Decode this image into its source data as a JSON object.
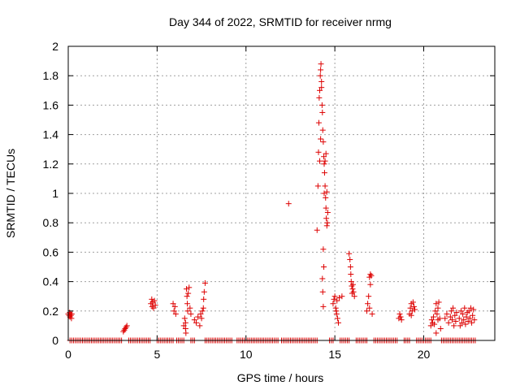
{
  "chart_data": {
    "type": "scatter",
    "title": "Day 344 of 2022, SRMTID for receiver nrmg",
    "xlabel": "GPS time / hours",
    "ylabel": "SRMTID / TECUs",
    "xlim": [
      0,
      24
    ],
    "ylim": [
      0,
      2
    ],
    "xticks": [
      0,
      5,
      10,
      15,
      20
    ],
    "xtick_labels": [
      "0",
      "5",
      "10",
      "15",
      "20"
    ],
    "yticks": [
      0,
      0.2,
      0.4,
      0.6,
      0.8,
      1,
      1.2,
      1.4,
      1.6,
      1.8,
      2
    ],
    "ytick_labels": [
      "0",
      "0.2",
      "0.4",
      "0.6",
      "0.8",
      "1",
      "1.2",
      "1.4",
      "1.6",
      "1.8",
      "2"
    ],
    "grid": true,
    "marker": "+",
    "color": "#dd0000",
    "series": [
      {
        "name": "SRMTID",
        "points": [
          [
            0.0,
            0.18
          ],
          [
            0.05,
            0.17
          ],
          [
            0.08,
            0.19
          ],
          [
            0.1,
            0.16
          ],
          [
            0.12,
            0.18
          ],
          [
            0.15,
            0.17
          ],
          [
            0.18,
            0.15
          ],
          [
            0.2,
            0.18
          ],
          [
            3.1,
            0.06
          ],
          [
            3.15,
            0.07
          ],
          [
            3.2,
            0.08
          ],
          [
            3.25,
            0.09
          ],
          [
            3.3,
            0.1
          ],
          [
            4.65,
            0.25
          ],
          [
            4.7,
            0.28
          ],
          [
            4.75,
            0.26
          ],
          [
            4.8,
            0.22
          ],
          [
            4.85,
            0.27
          ],
          [
            4.9,
            0.24
          ],
          [
            4.72,
            0.23
          ],
          [
            5.9,
            0.25
          ],
          [
            5.95,
            0.2
          ],
          [
            6.0,
            0.23
          ],
          [
            6.05,
            0.18
          ],
          [
            6.5,
            0.1
          ],
          [
            6.55,
            0.15
          ],
          [
            6.6,
            0.12
          ],
          [
            6.65,
            0.35
          ],
          [
            6.68,
            0.3
          ],
          [
            6.7,
            0.25
          ],
          [
            6.72,
            0.2
          ],
          [
            6.75,
            0.32
          ],
          [
            6.8,
            0.36
          ],
          [
            6.85,
            0.22
          ],
          [
            6.9,
            0.18
          ],
          [
            6.6,
            0.08
          ],
          [
            6.62,
            0.05
          ],
          [
            7.1,
            0.14
          ],
          [
            7.2,
            0.12
          ],
          [
            7.3,
            0.16
          ],
          [
            7.4,
            0.1
          ],
          [
            7.45,
            0.18
          ],
          [
            7.5,
            0.15
          ],
          [
            7.55,
            0.2
          ],
          [
            7.6,
            0.22
          ],
          [
            7.62,
            0.28
          ],
          [
            7.65,
            0.33
          ],
          [
            7.7,
            0.39
          ],
          [
            12.4,
            0.93
          ],
          [
            14.0,
            0.75
          ],
          [
            14.05,
            1.05
          ],
          [
            14.08,
            1.28
          ],
          [
            14.1,
            1.48
          ],
          [
            14.12,
            1.65
          ],
          [
            14.15,
            1.7
          ],
          [
            14.18,
            1.8
          ],
          [
            14.2,
            1.84
          ],
          [
            14.22,
            1.88
          ],
          [
            14.25,
            1.76
          ],
          [
            14.28,
            1.6
          ],
          [
            14.3,
            1.55
          ],
          [
            14.32,
            1.43
          ],
          [
            14.35,
            1.35
          ],
          [
            14.38,
            1.25
          ],
          [
            14.4,
            1.2
          ],
          [
            14.42,
            1.14
          ],
          [
            14.45,
            1.05
          ],
          [
            14.48,
            0.97
          ],
          [
            14.5,
            0.9
          ],
          [
            14.52,
            0.83
          ],
          [
            14.55,
            0.78
          ],
          [
            14.58,
            0.8
          ],
          [
            14.6,
            0.87
          ],
          [
            14.35,
            0.62
          ],
          [
            14.38,
            0.5
          ],
          [
            14.3,
            0.42
          ],
          [
            14.32,
            0.33
          ],
          [
            14.35,
            0.23
          ],
          [
            14.5,
            1.27
          ],
          [
            14.45,
            1.22
          ],
          [
            14.4,
            1.0
          ],
          [
            14.25,
            1.72
          ],
          [
            14.2,
            1.37
          ],
          [
            14.15,
            1.22
          ],
          [
            14.55,
            1.01
          ],
          [
            14.9,
            0.25
          ],
          [
            14.95,
            0.28
          ],
          [
            15.0,
            0.3
          ],
          [
            15.05,
            0.22
          ],
          [
            15.1,
            0.18
          ],
          [
            15.15,
            0.15
          ],
          [
            15.2,
            0.12
          ],
          [
            15.12,
            0.27
          ],
          [
            15.08,
            0.2
          ],
          [
            15.25,
            0.29
          ],
          [
            15.4,
            0.3
          ],
          [
            15.8,
            0.59
          ],
          [
            15.85,
            0.55
          ],
          [
            15.88,
            0.5
          ],
          [
            15.9,
            0.45
          ],
          [
            15.92,
            0.4
          ],
          [
            15.95,
            0.37
          ],
          [
            16.0,
            0.35
          ],
          [
            16.05,
            0.33
          ],
          [
            16.1,
            0.3
          ],
          [
            15.97,
            0.32
          ],
          [
            16.02,
            0.38
          ],
          [
            16.8,
            0.2
          ],
          [
            16.85,
            0.25
          ],
          [
            16.9,
            0.3
          ],
          [
            16.95,
            0.43
          ],
          [
            17.0,
            0.45
          ],
          [
            17.05,
            0.44
          ],
          [
            17.0,
            0.38
          ],
          [
            16.95,
            0.22
          ],
          [
            17.1,
            0.18
          ],
          [
            18.6,
            0.15
          ],
          [
            18.65,
            0.18
          ],
          [
            18.7,
            0.16
          ],
          [
            18.75,
            0.14
          ],
          [
            19.2,
            0.18
          ],
          [
            19.25,
            0.22
          ],
          [
            19.3,
            0.25
          ],
          [
            19.35,
            0.2
          ],
          [
            19.4,
            0.26
          ],
          [
            19.45,
            0.23
          ],
          [
            19.5,
            0.21
          ],
          [
            19.3,
            0.17
          ],
          [
            20.4,
            0.1
          ],
          [
            20.45,
            0.14
          ],
          [
            20.5,
            0.12
          ],
          [
            20.55,
            0.16
          ],
          [
            20.6,
            0.11
          ],
          [
            20.65,
            0.2
          ],
          [
            20.7,
            0.25
          ],
          [
            20.75,
            0.18
          ],
          [
            20.8,
            0.22
          ],
          [
            20.85,
            0.26
          ],
          [
            20.9,
            0.15
          ],
          [
            20.95,
            0.08
          ],
          [
            20.7,
            0.05
          ],
          [
            20.8,
            0.14
          ],
          [
            21.2,
            0.15
          ],
          [
            21.3,
            0.18
          ],
          [
            21.4,
            0.12
          ],
          [
            21.5,
            0.16
          ],
          [
            21.55,
            0.2
          ],
          [
            21.6,
            0.14
          ],
          [
            21.65,
            0.22
          ],
          [
            21.7,
            0.1
          ],
          [
            21.75,
            0.17
          ],
          [
            21.8,
            0.13
          ],
          [
            21.85,
            0.19
          ],
          [
            22.0,
            0.15
          ],
          [
            22.05,
            0.1
          ],
          [
            22.1,
            0.2
          ],
          [
            22.15,
            0.12
          ],
          [
            22.2,
            0.18
          ],
          [
            22.25,
            0.14
          ],
          [
            22.3,
            0.22
          ],
          [
            22.35,
            0.11
          ],
          [
            22.4,
            0.16
          ],
          [
            22.45,
            0.19
          ],
          [
            22.5,
            0.13
          ],
          [
            22.55,
            0.2
          ],
          [
            22.6,
            0.15
          ],
          [
            22.65,
            0.22
          ],
          [
            22.7,
            0.12
          ],
          [
            22.75,
            0.17
          ],
          [
            22.8,
            0.21
          ],
          [
            22.85,
            0.14
          ]
        ],
        "zero_runs": [
          [
            0.1,
            3.0
          ],
          [
            3.4,
            4.6
          ],
          [
            5.0,
            5.9
          ],
          [
            6.1,
            6.5
          ],
          [
            6.9,
            7.1
          ],
          [
            7.7,
            9.2
          ],
          [
            9.5,
            11.8
          ],
          [
            12.0,
            14.0
          ],
          [
            14.7,
            14.9
          ],
          [
            15.3,
            15.8
          ],
          [
            16.2,
            16.8
          ],
          [
            17.2,
            18.5
          ],
          [
            18.9,
            19.2
          ],
          [
            19.6,
            20.4
          ],
          [
            21.0,
            22.9
          ]
        ]
      }
    ]
  }
}
